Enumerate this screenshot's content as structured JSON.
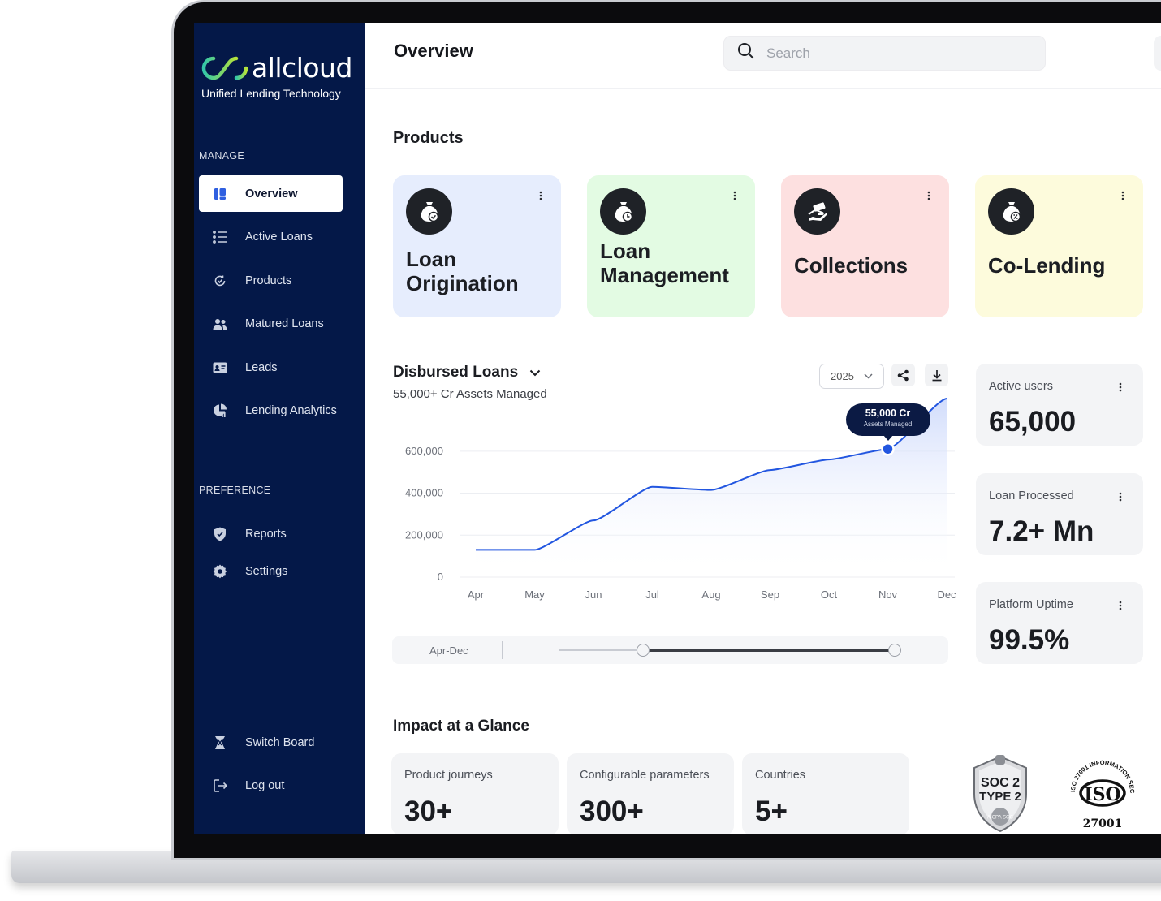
{
  "brand": {
    "name": "allcloud",
    "tagline": "Unified Lending Technology",
    "sidebar_bg": "#041848",
    "accent": "#2f5fe0"
  },
  "sidebar": {
    "manage_label": "MANAGE",
    "manage_items": [
      {
        "label": "Overview",
        "icon": "overview-icon",
        "active": true
      },
      {
        "label": "Active Loans",
        "icon": "list-icon"
      },
      {
        "label": "Products",
        "icon": "refresh-icon"
      },
      {
        "label": "Matured Loans",
        "icon": "users-icon"
      },
      {
        "label": "Leads",
        "icon": "id-card-icon"
      },
      {
        "label": "Lending Analytics",
        "icon": "pie-chart-icon"
      }
    ],
    "preference_label": "PREFERENCE",
    "preference_items": [
      {
        "label": "Reports",
        "icon": "shield-icon"
      },
      {
        "label": "Settings",
        "icon": "gear-icon"
      }
    ],
    "footer_items": [
      {
        "label": "Switch Board",
        "icon": "switch-icon"
      },
      {
        "label": "Log out",
        "icon": "logout-icon"
      }
    ]
  },
  "header": {
    "title": "Overview",
    "search_placeholder": "Search"
  },
  "products": {
    "heading": "Products",
    "cards": [
      {
        "name": "Loan Origination",
        "line1": "Loan",
        "line2": "Origination",
        "color": "#e6edfd",
        "icon": "money-bag-check-icon"
      },
      {
        "name": "Loan Management",
        "line1": "Loan",
        "line2": "Management",
        "color": "#e3fbe3",
        "icon": "money-bag-clock-icon"
      },
      {
        "name": "Collections",
        "line1": "Collections",
        "line2": "",
        "color": "#fde0e0",
        "icon": "hand-cash-icon"
      },
      {
        "name": "Co-Lending",
        "line1": "Co-Lending",
        "line2": "",
        "color": "#fdfbdc",
        "icon": "money-bag-percent-icon"
      }
    ]
  },
  "disbursed": {
    "title": "Disbursed Loans",
    "subtitle": "55,000+ Cr Assets Managed",
    "year": "2025",
    "tooltip_value": "55,000 Cr",
    "tooltip_label": "Assets Managed",
    "range_label": "Apr-Dec",
    "range_start_fraction": 0.25,
    "range_end_fraction": 1.0
  },
  "chart_data": {
    "type": "area",
    "title": "Disbursed Loans",
    "x": [
      "Apr",
      "May",
      "Jun",
      "Jul",
      "Aug",
      "Sep",
      "Oct",
      "Nov",
      "Dec"
    ],
    "series": [
      {
        "values": [
          130000,
          130000,
          270000,
          430000,
          415000,
          510000,
          560000,
          610000,
          850000
        ]
      }
    ],
    "highlight_index": 7,
    "highlight_label": "55,000 Cr",
    "yticks": [
      0,
      200000,
      400000,
      600000
    ],
    "ytick_labels": [
      "0",
      "200,000",
      "400,000",
      "600,000"
    ],
    "ylim": [
      0,
      870000
    ],
    "grid": true,
    "line_color": "#2256e0"
  },
  "stats": [
    {
      "label": "Active users",
      "value": "65,000"
    },
    {
      "label": "Loan Processed",
      "value": "7.2+ Mn"
    },
    {
      "label": "Platform Uptime",
      "value": "99.5%"
    }
  ],
  "impact": {
    "heading": "Impact at a Glance",
    "cards": [
      {
        "label": "Product journeys",
        "value": "30+"
      },
      {
        "label": "Configurable parameters",
        "value": "300+"
      },
      {
        "label": "Countries",
        "value": "5+"
      }
    ]
  },
  "badges": {
    "soc_line1": "SOC 2",
    "soc_line2": "TYPE 2",
    "soc_seal": "AICPA SOC",
    "iso_mark": "ISO",
    "iso_number": "27001",
    "iso_ring": "ISO 27001 INFORMATION SECURITY"
  }
}
